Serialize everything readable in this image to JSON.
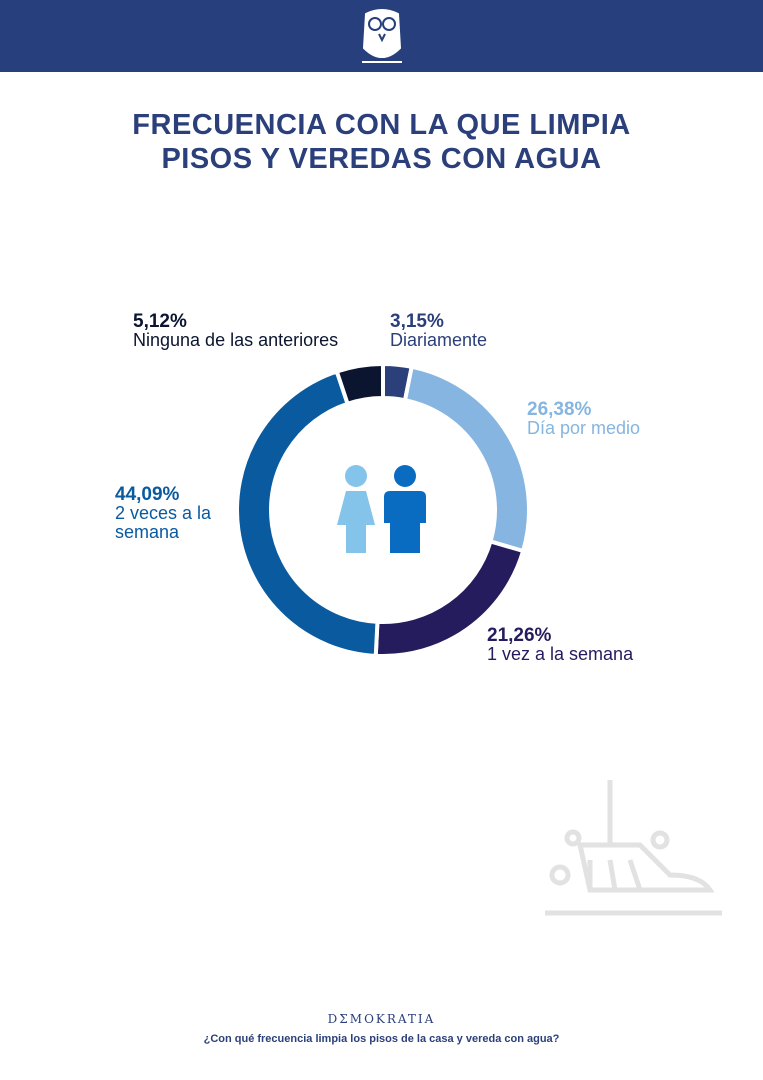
{
  "brand": "DΣMOKRATIA",
  "question": "¿Con qué frecuencia limpia los pisos de la casa y vereda con agua?",
  "chart_data": {
    "type": "donut",
    "title": "FRECUENCIA CON LA QUE LIMPIA PISOS Y VEREDAS CON AGUA",
    "categories": [
      "Diariamente",
      "Día por medio",
      "1 vez a la semana",
      "2 veces a la semana",
      "Ninguna de las anteriores"
    ],
    "values": [
      3.15,
      26.38,
      21.26,
      44.09,
      5.12
    ],
    "value_labels": [
      "3,15%",
      "26,38%",
      "21,26%",
      "44,09%",
      "5,12%"
    ],
    "colors": [
      "#2b3f7a",
      "#85b5e0",
      "#251c5e",
      "#0a5aa0",
      "#0b1530"
    ]
  }
}
